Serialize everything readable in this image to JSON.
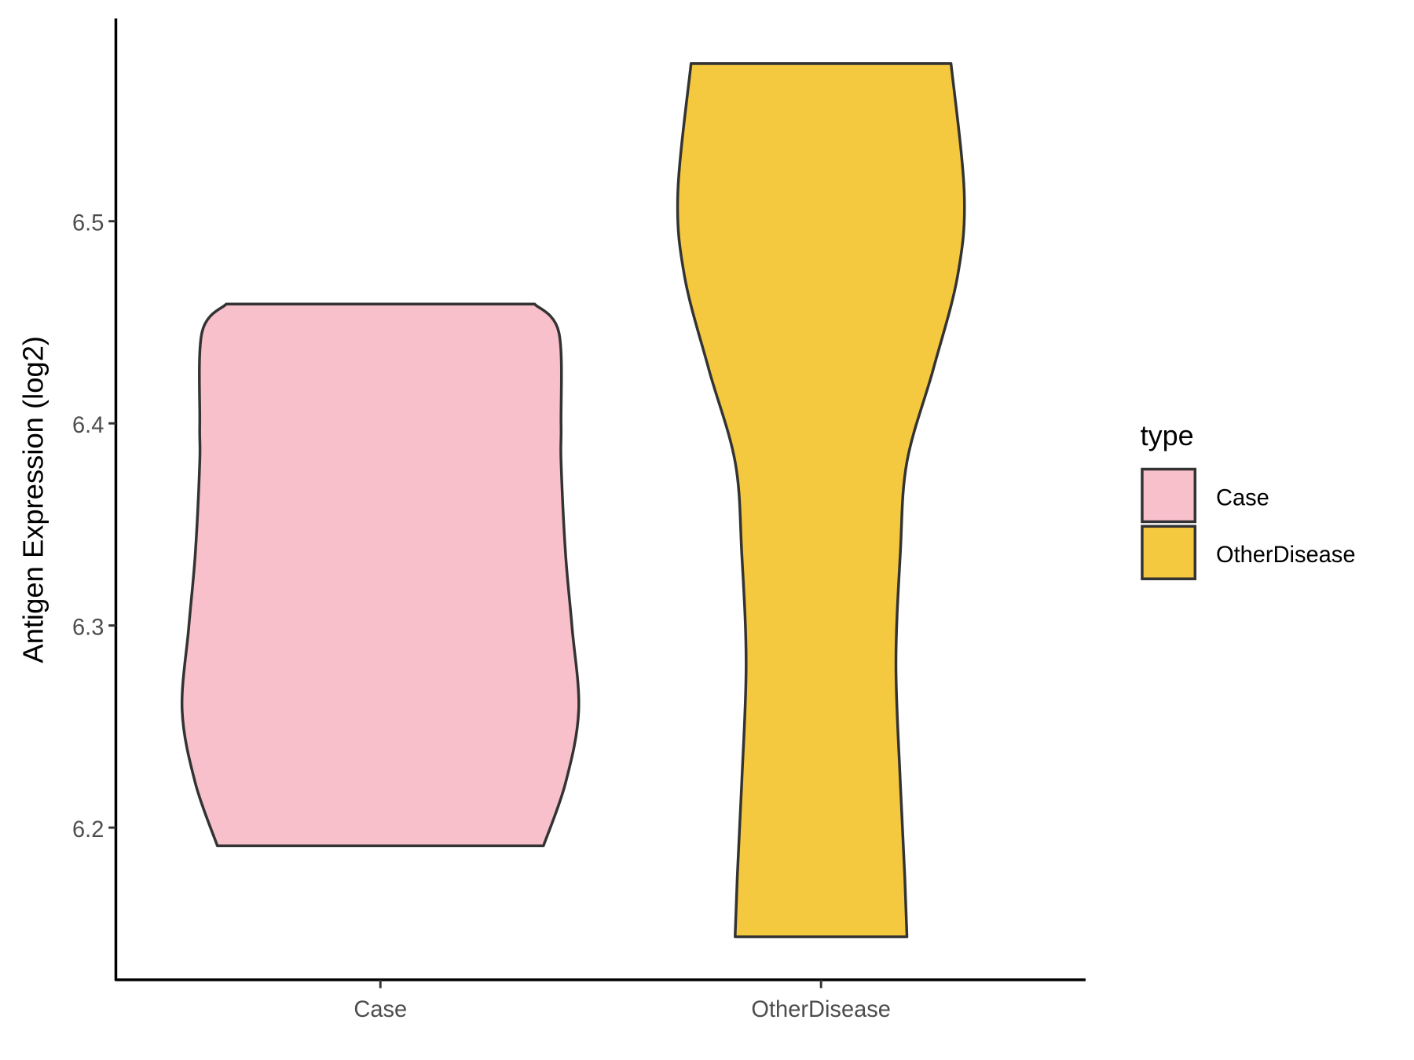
{
  "chart_data": {
    "type": "violin",
    "title": "",
    "xlabel": "",
    "ylabel": "Antigen Expression (log2)",
    "ylim": [
      6.125,
      6.6
    ],
    "yticks": [
      6.2,
      6.3,
      6.4,
      6.5
    ],
    "ytick_labels": [
      "6.2",
      "6.3",
      "6.4",
      "6.5"
    ],
    "categories": [
      "Case",
      "OtherDisease"
    ],
    "grid": false,
    "legend": {
      "title": "type",
      "position": "right",
      "entries": [
        "Case",
        "OtherDisease"
      ]
    },
    "series": [
      {
        "name": "Case",
        "color": "#F7C0CB",
        "min": 6.191,
        "max": 6.459,
        "profile_y": [
          6.459,
          6.445,
          6.4,
          6.381,
          6.336,
          6.299,
          6.258,
          6.222,
          6.191
        ],
        "profile_width": [
          0.7,
          0.81,
          0.82,
          0.82,
          0.84,
          0.87,
          0.9,
          0.84,
          0.74
        ]
      },
      {
        "name": "OtherDisease",
        "color": "#F5C93F",
        "min": 6.146,
        "max": 6.578,
        "profile_y": [
          6.578,
          6.514,
          6.473,
          6.427,
          6.381,
          6.336,
          6.281,
          6.222,
          6.176,
          6.146
        ],
        "profile_width": [
          0.59,
          0.65,
          0.62,
          0.51,
          0.39,
          0.36,
          0.34,
          0.36,
          0.38,
          0.39
        ]
      }
    ],
    "outline_color": "#333333"
  }
}
